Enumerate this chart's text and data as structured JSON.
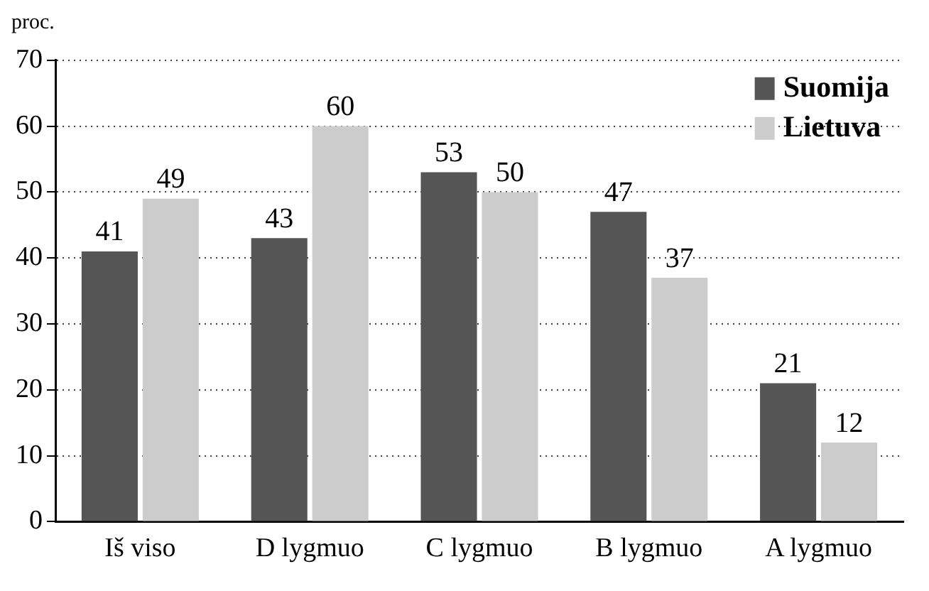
{
  "chart_data": {
    "type": "bar",
    "ylabel": "proc.",
    "categories": [
      "Iš viso",
      "D lygmuo",
      "C lygmuo",
      "B lygmuo",
      "A lygmuo"
    ],
    "series": [
      {
        "name": "Suomija",
        "color": "#555555",
        "values": [
          41,
          43,
          53,
          47,
          21
        ]
      },
      {
        "name": "Lietuva",
        "color": "#cccccc",
        "values": [
          49,
          60,
          50,
          37,
          12
        ]
      }
    ],
    "ylim": [
      0,
      70
    ],
    "yticks": [
      0,
      10,
      20,
      30,
      40,
      50,
      60,
      70
    ],
    "grid": "y",
    "legend": "top right",
    "data_labels": true
  }
}
